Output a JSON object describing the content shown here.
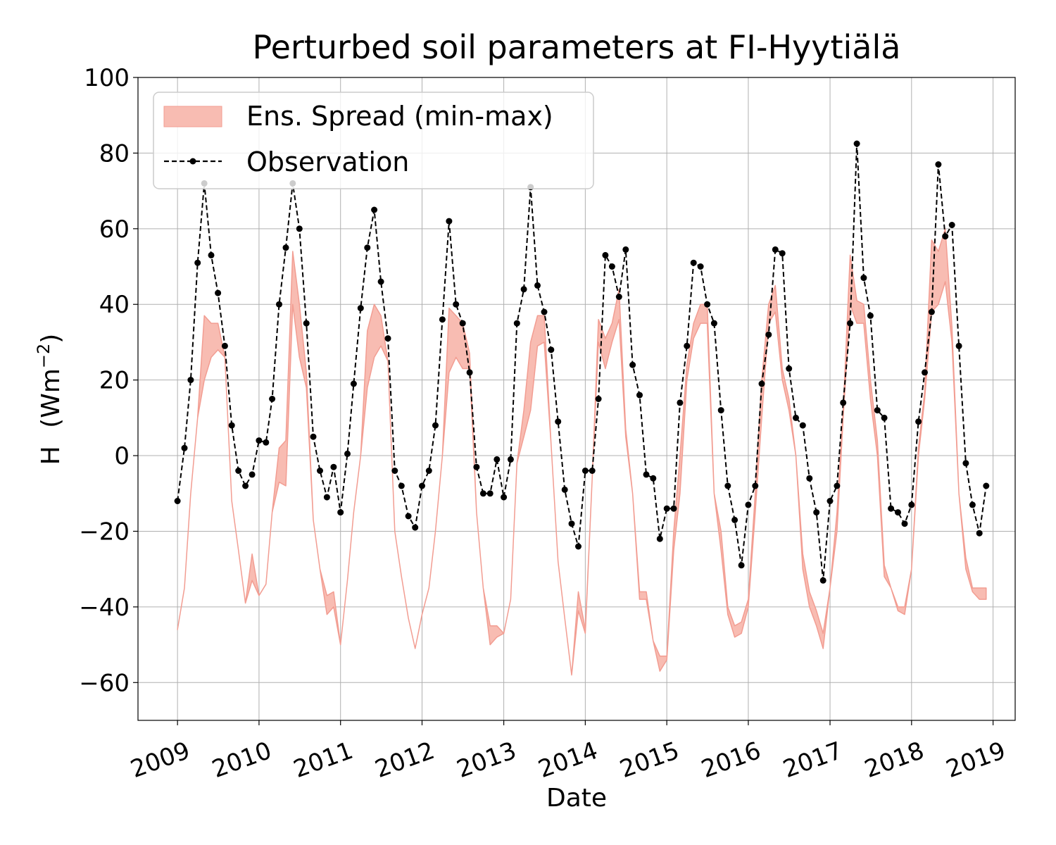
{
  "chart_data": {
    "type": "line",
    "title": "Perturbed soil parameters at FI-Hyytiälä",
    "xlabel": "Date",
    "ylabel": "H",
    "ylabel_unit": "(Wm",
    "ylabel_exp": "−2",
    "ylabel_close": ")",
    "xlim": [
      "2008-07-08",
      "2019-04-10"
    ],
    "ylim": [
      -70,
      100
    ],
    "yticks": [
      -60,
      -40,
      -20,
      0,
      20,
      40,
      60,
      80,
      100
    ],
    "ytick_labels": [
      "−60",
      "−40",
      "−20",
      "0",
      "20",
      "40",
      "60",
      "80",
      "100"
    ],
    "xticks": [
      "2009-01-01",
      "2010-01-01",
      "2011-01-01",
      "2012-01-01",
      "2013-01-01",
      "2014-01-01",
      "2015-01-01",
      "2016-01-01",
      "2017-01-01",
      "2018-01-01",
      "2019-01-01"
    ],
    "xtick_labels": [
      "2009",
      "2010",
      "2011",
      "2012",
      "2013",
      "2014",
      "2015",
      "2016",
      "2017",
      "2018",
      "2019"
    ],
    "grid": true,
    "legend_position": "top-left",
    "colors": {
      "spread_fill": "#f8bcb2",
      "spread_edge": "#f29d92",
      "observation": "#000000",
      "grid": "#b0b0b0"
    },
    "series": [
      {
        "name": "Ens. Spread (min-max)",
        "kind": "band",
        "x": [
          "2009-01-01",
          "2009-02-01",
          "2009-03-01",
          "2009-04-01",
          "2009-05-01",
          "2009-06-01",
          "2009-07-01",
          "2009-08-01",
          "2009-09-01",
          "2009-10-01",
          "2009-11-01",
          "2009-12-01",
          "2010-01-01",
          "2010-02-01",
          "2010-03-01",
          "2010-04-01",
          "2010-05-01",
          "2010-06-01",
          "2010-07-01",
          "2010-08-01",
          "2010-09-01",
          "2010-10-01",
          "2010-11-01",
          "2010-12-01",
          "2011-01-01",
          "2011-02-01",
          "2011-03-01",
          "2011-04-01",
          "2011-05-01",
          "2011-06-01",
          "2011-07-01",
          "2011-08-01",
          "2011-09-01",
          "2011-10-01",
          "2011-11-01",
          "2011-12-01",
          "2012-01-01",
          "2012-02-01",
          "2012-03-01",
          "2012-04-01",
          "2012-05-01",
          "2012-06-01",
          "2012-07-01",
          "2012-08-01",
          "2012-09-01",
          "2012-10-01",
          "2012-11-01",
          "2012-12-01",
          "2013-01-01",
          "2013-02-01",
          "2013-03-01",
          "2013-04-01",
          "2013-05-01",
          "2013-06-01",
          "2013-07-01",
          "2013-08-01",
          "2013-09-01",
          "2013-10-01",
          "2013-11-01",
          "2013-12-01",
          "2014-01-01",
          "2014-02-01",
          "2014-03-01",
          "2014-04-01",
          "2014-05-01",
          "2014-06-01",
          "2014-07-01",
          "2014-08-01",
          "2014-09-01",
          "2014-10-01",
          "2014-11-01",
          "2014-12-01",
          "2015-01-01",
          "2015-02-01",
          "2015-03-01",
          "2015-04-01",
          "2015-05-01",
          "2015-06-01",
          "2015-07-01",
          "2015-08-01",
          "2015-09-01",
          "2015-10-01",
          "2015-11-01",
          "2015-12-01",
          "2016-01-01",
          "2016-02-01",
          "2016-03-01",
          "2016-04-01",
          "2016-05-01",
          "2016-06-01",
          "2016-07-01",
          "2016-08-01",
          "2016-09-01",
          "2016-10-01",
          "2016-11-01",
          "2016-12-01",
          "2017-01-01",
          "2017-02-01",
          "2017-03-01",
          "2017-04-01",
          "2017-05-01",
          "2017-06-01",
          "2017-07-01",
          "2017-08-01",
          "2017-09-01",
          "2017-10-01",
          "2017-11-01",
          "2017-12-01",
          "2018-01-01",
          "2018-02-01",
          "2018-03-01",
          "2018-04-01",
          "2018-05-01",
          "2018-06-01",
          "2018-07-01",
          "2018-08-01",
          "2018-09-01",
          "2018-10-01",
          "2018-11-01",
          "2018-12-01"
        ],
        "lower": [
          -46,
          -35,
          -10,
          10,
          20,
          26,
          28,
          26,
          -12,
          -25,
          -39,
          -33,
          -37,
          -34,
          -15,
          -7,
          -8,
          40,
          26,
          18,
          -17,
          -30,
          -42,
          -40,
          -50,
          -33,
          -15,
          0,
          18,
          26,
          29,
          25,
          -20,
          -32,
          -43,
          -51,
          -42,
          -35,
          -20,
          0,
          22,
          26,
          23,
          23,
          -15,
          -35,
          -50,
          -48,
          -47,
          -38,
          -2,
          5,
          12,
          29,
          30,
          3,
          -28,
          -43,
          -58,
          -41,
          -47,
          -6,
          30,
          23,
          30,
          36,
          5,
          -10,
          -38,
          -38,
          -49,
          -57,
          -54,
          -25,
          -10,
          20,
          31,
          35,
          35,
          -10,
          -25,
          -42,
          -48,
          -47,
          -40,
          -15,
          10,
          35,
          38,
          20,
          12,
          0,
          -30,
          -40,
          -45,
          -51,
          -35,
          -20,
          10,
          40,
          35,
          35,
          15,
          0,
          -32,
          -35,
          -41,
          -42,
          -30,
          0,
          15,
          38,
          40,
          46,
          30,
          -10,
          -30,
          -36,
          -38,
          -38
        ],
        "upper": [
          -46,
          -35,
          -10,
          10,
          37,
          35,
          35,
          26,
          -12,
          -25,
          -39,
          -26,
          -37,
          -34,
          -15,
          2,
          4,
          54,
          40,
          22,
          -17,
          -30,
          -37,
          -36,
          -50,
          -33,
          -15,
          0,
          33,
          40,
          37,
          25,
          -20,
          -32,
          -43,
          -51,
          -42,
          -35,
          -20,
          0,
          39,
          37,
          35,
          27,
          -15,
          -35,
          -45,
          -45,
          -47,
          -38,
          -2,
          12,
          30,
          37,
          37,
          3,
          -28,
          -43,
          -58,
          -36,
          -46,
          -6,
          36,
          31,
          35,
          44,
          7,
          -10,
          -36,
          -36,
          -49,
          -53,
          -53,
          -20,
          0,
          24,
          35,
          40,
          40,
          -10,
          -20,
          -40,
          -45,
          -44,
          -38,
          -10,
          20,
          40,
          45,
          23,
          15,
          0,
          -26,
          -36,
          -41,
          -47,
          -35,
          -15,
          12,
          53,
          41,
          40,
          20,
          4,
          -29,
          -35,
          -40,
          -40,
          -30,
          2,
          17,
          57,
          54,
          60,
          34,
          -10,
          -27,
          -35,
          -35,
          -35
        ]
      },
      {
        "name": "Observation",
        "kind": "line",
        "x": [
          "2009-01-01",
          "2009-02-01",
          "2009-03-01",
          "2009-04-01",
          "2009-05-01",
          "2009-06-01",
          "2009-07-01",
          "2009-08-01",
          "2009-09-01",
          "2009-10-01",
          "2009-11-01",
          "2009-12-01",
          "2010-01-01",
          "2010-02-01",
          "2010-03-01",
          "2010-04-01",
          "2010-05-01",
          "2010-06-01",
          "2010-07-01",
          "2010-08-01",
          "2010-09-01",
          "2010-10-01",
          "2010-11-01",
          "2010-12-01",
          "2011-01-01",
          "2011-02-01",
          "2011-03-01",
          "2011-04-01",
          "2011-05-01",
          "2011-06-01",
          "2011-07-01",
          "2011-08-01",
          "2011-09-01",
          "2011-10-01",
          "2011-11-01",
          "2011-12-01",
          "2012-01-01",
          "2012-02-01",
          "2012-03-01",
          "2012-04-01",
          "2012-05-01",
          "2012-06-01",
          "2012-07-01",
          "2012-08-01",
          "2012-09-01",
          "2012-10-01",
          "2012-11-01",
          "2012-12-01",
          "2013-01-01",
          "2013-02-01",
          "2013-03-01",
          "2013-04-01",
          "2013-05-01",
          "2013-06-01",
          "2013-07-01",
          "2013-08-01",
          "2013-09-01",
          "2013-10-01",
          "2013-11-01",
          "2013-12-01",
          "2014-01-01",
          "2014-02-01",
          "2014-03-01",
          "2014-04-01",
          "2014-05-01",
          "2014-06-01",
          "2014-07-01",
          "2014-08-01",
          "2014-09-01",
          "2014-10-01",
          "2014-11-01",
          "2014-12-01",
          "2015-01-01",
          "2015-02-01",
          "2015-03-01",
          "2015-04-01",
          "2015-05-01",
          "2015-06-01",
          "2015-07-01",
          "2015-08-01",
          "2015-09-01",
          "2015-10-01",
          "2015-11-01",
          "2015-12-01",
          "2016-01-01",
          "2016-02-01",
          "2016-03-01",
          "2016-04-01",
          "2016-05-01",
          "2016-06-01",
          "2016-07-01",
          "2016-08-01",
          "2016-09-01",
          "2016-10-01",
          "2016-11-01",
          "2016-12-01",
          "2017-01-01",
          "2017-02-01",
          "2017-03-01",
          "2017-04-01",
          "2017-05-01",
          "2017-06-01",
          "2017-07-01",
          "2017-08-01",
          "2017-09-01",
          "2017-10-01",
          "2017-11-01",
          "2017-12-01",
          "2018-01-01",
          "2018-02-01",
          "2018-03-01",
          "2018-04-01",
          "2018-05-01",
          "2018-06-01",
          "2018-07-01",
          "2018-08-01",
          "2018-09-01",
          "2018-10-01",
          "2018-11-01",
          "2018-12-01"
        ],
        "y": [
          -12,
          2,
          20,
          51,
          72,
          53,
          43,
          29,
          8,
          -4,
          -8,
          -5,
          4,
          3.5,
          15,
          40,
          55,
          72,
          60,
          35,
          5,
          -4,
          -11,
          -3,
          -15,
          0.5,
          19,
          39,
          55,
          65,
          46,
          31,
          -4,
          -8,
          -16,
          -19,
          -8,
          -4,
          8,
          36,
          62,
          40,
          35,
          22,
          -3,
          -10,
          -10,
          -1,
          -11,
          -1,
          35,
          44,
          71,
          45,
          38,
          28,
          9,
          -9,
          -18,
          -24,
          -4,
          -4,
          15,
          53,
          50,
          42,
          54.5,
          24,
          16,
          -5,
          -6,
          -22,
          -14,
          -14,
          14,
          29,
          51,
          50,
          40,
          35,
          12,
          -8,
          -17,
          -29,
          -13,
          -8,
          19,
          32,
          54.5,
          53.5,
          23,
          10,
          8,
          -6,
          -15,
          -33,
          -12,
          -8,
          14,
          35,
          82.5,
          47,
          37,
          12,
          10,
          -14,
          -15,
          -18,
          -13,
          9,
          22,
          38,
          77,
          58,
          61,
          29,
          -2,
          -13,
          -20.5,
          -8
        ]
      }
    ]
  }
}
